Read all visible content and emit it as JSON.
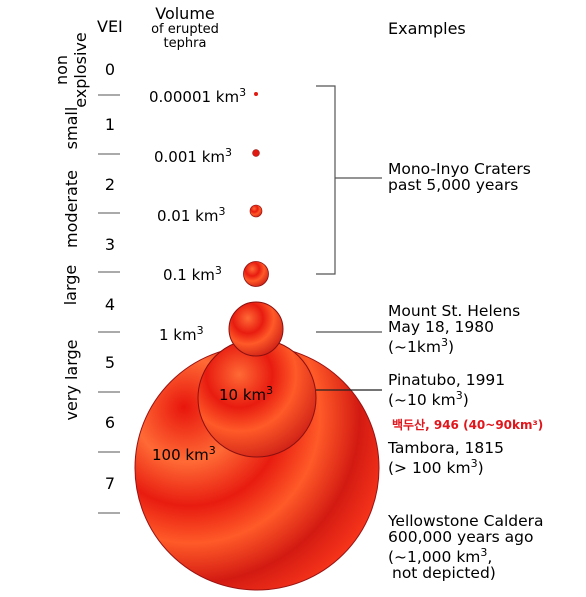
{
  "header": {
    "vei": "VEI",
    "volume_line1": "Volume",
    "volume_line2": "of erupted",
    "volume_line3": "tephra",
    "examples": "Examples"
  },
  "vei_numbers": [
    "0",
    "1",
    "2",
    "3",
    "4",
    "5",
    "6",
    "7"
  ],
  "categories": {
    "non_explosive_1": "non",
    "non_explosive_2": "explosive",
    "small": "small",
    "moderate": "moderate",
    "large": "large",
    "very_large": "very large"
  },
  "volumes": [
    {
      "value": "0.00001 km",
      "exp": "3"
    },
    {
      "value": "0.001 km",
      "exp": "3"
    },
    {
      "value": "0.01 km",
      "exp": "3"
    },
    {
      "value": "0.1 km",
      "exp": "3"
    },
    {
      "value": "1 km",
      "exp": "3"
    },
    {
      "value": "10 km",
      "exp": "3"
    },
    {
      "value": "100 km",
      "exp": "3"
    }
  ],
  "examples": {
    "mono_1": "Mono-Inyo Craters",
    "mono_2": "past 5,000 years",
    "helens_1": "Mount St. Helens",
    "helens_2": "May 18, 1980",
    "helens_3a": "(~1km",
    "helens_3exp": "3",
    "helens_3b": ")",
    "pinatubo_1": "Pinatubo, 1991",
    "pinatubo_2a": "(~10 km",
    "pinatubo_2exp": "3",
    "pinatubo_2b": ")",
    "baekdu": "백두산, 946 (40~90km³)",
    "tambora_1": "Tambora, 1815",
    "tambora_2a": "(> 100 km",
    "tambora_2exp": "3",
    "tambora_2b": ")",
    "yellowstone_1": "Yellowstone Caldera",
    "yellowstone_2": "600,000 years ago",
    "yellowstone_3a": "(~1,000 km",
    "yellowstone_3exp": "3",
    "yellowstone_3b": ",",
    "yellowstone_4": "not depicted)"
  },
  "colors": {
    "sphere_light": "#ff3b1f",
    "sphere_mid": "#e31a0f",
    "sphere_dark": "#b21414",
    "sphere_stroke": "#8a1010",
    "accent_korean": "#e0161c"
  }
}
